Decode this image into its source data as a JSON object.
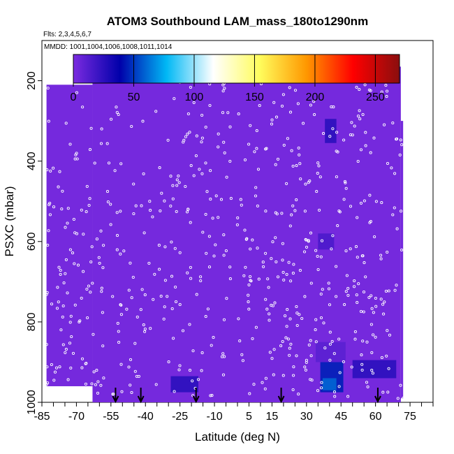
{
  "chart_data": {
    "type": "heatmap",
    "title": "ATOM3 Southbound LAM_mass_180to1290nm",
    "flights_label": "Flts: 2,3,4,5,6,7",
    "dates_label": "MMDD: 1001,1004,1006,1008,1011,1014",
    "xlabel": "Latitude (deg N)",
    "ylabel": "PSXC (mbar)",
    "xlim": [
      -85,
      85
    ],
    "ylim": [
      1000,
      100
    ],
    "y_axis": "inverted pressure",
    "x_ticks": [
      "-85",
      "-70",
      "-55",
      "-40",
      "-25",
      "-10",
      "5",
      "15",
      "30",
      "45",
      "60",
      "75"
    ],
    "x_tick_values": [
      -85,
      -70,
      -55,
      -40,
      -25,
      -10,
      5,
      15,
      30,
      45,
      60,
      75
    ],
    "y_ticks": [
      "200",
      "400",
      "600",
      "800",
      "1000"
    ],
    "y_tick_values": [
      200,
      400,
      600,
      800,
      1000
    ],
    "colorbar": {
      "range": [
        0,
        270
      ],
      "ticks": [
        "0",
        "50",
        "100",
        "150",
        "200",
        "250"
      ],
      "tick_values": [
        0,
        50,
        100,
        150,
        200,
        250
      ],
      "colors": [
        "#7b2be0",
        "#0000aa",
        "#00b8f5",
        "#ffffff",
        "#fffc5c",
        "#ff9800",
        "#ff0000",
        "#8a0e0e"
      ]
    },
    "background_value": 2,
    "coverage": [
      {
        "x0": -83,
        "x1": -63,
        "y0": 210,
        "y1": 960
      },
      {
        "x0": -63,
        "x1": 71,
        "y0": 165,
        "y1": 1000
      },
      {
        "x0": 71,
        "x1": 72,
        "y0": 300,
        "y1": 990
      }
    ],
    "highlights": [
      {
        "x0": -29,
        "x1": -17,
        "y0": 935,
        "y1": 975,
        "value": 25
      },
      {
        "x0": 36,
        "x1": 46,
        "y0": 900,
        "y1": 975,
        "value": 45
      },
      {
        "x0": 37,
        "x1": 43,
        "y0": 940,
        "y1": 970,
        "value": 60
      },
      {
        "x0": 38,
        "x1": 43,
        "y0": 295,
        "y1": 355,
        "value": 25
      },
      {
        "x0": 50,
        "x1": 69,
        "y0": 895,
        "y1": 940,
        "value": 25
      },
      {
        "x0": 35,
        "x1": 42,
        "y0": 580,
        "y1": 620,
        "value": 15
      },
      {
        "x0": 34,
        "x1": 47,
        "y0": 850,
        "y1": 900,
        "value": 10
      }
    ],
    "arrows_lat": [
      -53,
      -42,
      -18,
      19,
      61
    ]
  }
}
